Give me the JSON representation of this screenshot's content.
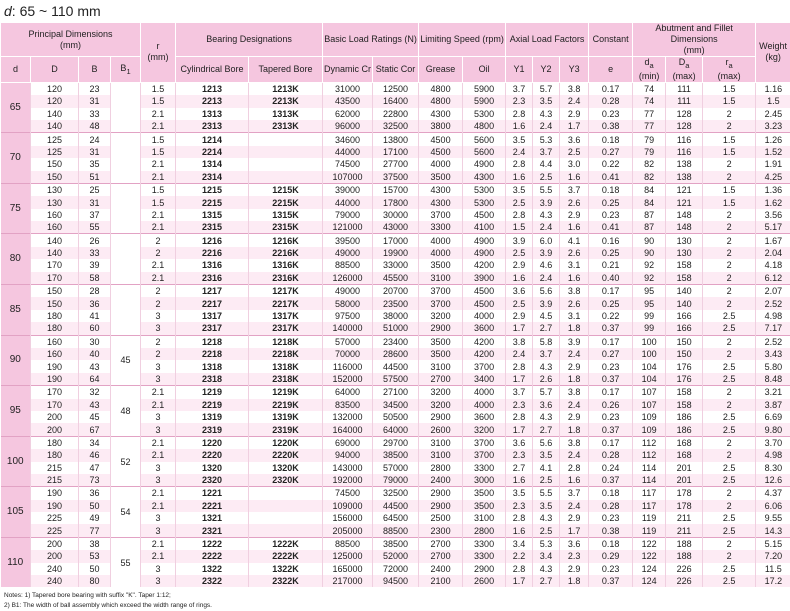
{
  "title": {
    "var": "d",
    "text": ": 65 ~ 110 mm"
  },
  "header_top": [
    {
      "text": "Principal Dimensions",
      "unit": "(mm)"
    },
    {
      "text": "r",
      "unit": "(mm)"
    },
    {
      "text": "Bearing Designations"
    },
    {
      "text": "Basic Load Ratings (N)"
    },
    {
      "text": "Limiting Speed (rpm)"
    },
    {
      "text": "Axial Load Factors"
    },
    {
      "text": "Constant"
    },
    {
      "text": "Abutment and Fillet Dimensions",
      "unit": "(mm)"
    },
    {
      "text": "Weight",
      "unit": "(kg)"
    }
  ],
  "header_sub": [
    {
      "text": "d"
    },
    {
      "text": "D"
    },
    {
      "text": "B"
    },
    {
      "text": "B",
      "sub": "1"
    },
    {
      "text": "Cylindrical Bore"
    },
    {
      "text": "Tapered Bore"
    },
    {
      "text": "Dynamic Cr"
    },
    {
      "text": "Static Cor"
    },
    {
      "text": "Grease"
    },
    {
      "text": "Oil"
    },
    {
      "text": "Y1"
    },
    {
      "text": "Y2"
    },
    {
      "text": "Y3"
    },
    {
      "text": "e"
    },
    {
      "text": "d",
      "sub": "a",
      "unit": "(min)"
    },
    {
      "text": "D",
      "sub": "a",
      "unit": "(max)"
    },
    {
      "text": "r",
      "sub": "a",
      "unit": "(max)"
    }
  ],
  "groups": [
    {
      "d": "65",
      "rows": [
        [
          "120",
          "23",
          "1.5",
          "1213",
          "1213K",
          "31000",
          "12500",
          "4800",
          "5900",
          "3.7",
          "5.7",
          "3.8",
          "0.17",
          "74",
          "111",
          "1.5",
          "1.16"
        ],
        [
          "120",
          "31",
          "1.5",
          "2213",
          "2213K",
          "43500",
          "16400",
          "4800",
          "5900",
          "2.3",
          "3.5",
          "2.4",
          "0.28",
          "74",
          "111",
          "1.5",
          "1.5"
        ],
        [
          "140",
          "33",
          "2.1",
          "1313",
          "1313K",
          "62000",
          "22800",
          "4300",
          "5300",
          "2.8",
          "4.3",
          "2.9",
          "0.23",
          "77",
          "128",
          "2",
          "2.45"
        ],
        [
          "140",
          "48",
          "2.1",
          "2313",
          "2313K",
          "96000",
          "32500",
          "3800",
          "4800",
          "1.6",
          "2.4",
          "1.7",
          "0.38",
          "77",
          "128",
          "2",
          "3.23"
        ]
      ]
    },
    {
      "d": "70",
      "rows": [
        [
          "125",
          "24",
          "1.5",
          "1214",
          null,
          "34600",
          "13800",
          "4500",
          "5600",
          "3.5",
          "5.3",
          "3.6",
          "0.18",
          "79",
          "116",
          "1.5",
          "1.26"
        ],
        [
          "125",
          "31",
          "1.5",
          "2214",
          null,
          "44000",
          "17100",
          "4500",
          "5600",
          "2.4",
          "3.7",
          "2.5",
          "0.27",
          "79",
          "116",
          "1.5",
          "1.52"
        ],
        [
          "150",
          "35",
          "2.1",
          "1314",
          null,
          "74500",
          "27700",
          "4000",
          "4900",
          "2.8",
          "4.4",
          "3.0",
          "0.22",
          "82",
          "138",
          "2",
          "1.91"
        ],
        [
          "150",
          "51",
          "2.1",
          "2314",
          null,
          "107000",
          "37500",
          "3500",
          "4300",
          "1.6",
          "2.5",
          "1.6",
          "0.41",
          "82",
          "138",
          "2",
          "4.25"
        ]
      ]
    },
    {
      "d": "75",
      "rows": [
        [
          "130",
          "25",
          "1.5",
          "1215",
          "1215K",
          "39000",
          "15700",
          "4300",
          "5300",
          "3.5",
          "5.5",
          "3.7",
          "0.18",
          "84",
          "121",
          "1.5",
          "1.36"
        ],
        [
          "130",
          "31",
          "1.5",
          "2215",
          "2215K",
          "44000",
          "17800",
          "4300",
          "5300",
          "2.5",
          "3.9",
          "2.6",
          "0.25",
          "84",
          "121",
          "1.5",
          "1.62"
        ],
        [
          "160",
          "37",
          "2.1",
          "1315",
          "1315K",
          "79000",
          "30000",
          "3700",
          "4500",
          "2.8",
          "4.3",
          "2.9",
          "0.23",
          "87",
          "148",
          "2",
          "3.56"
        ],
        [
          "160",
          "55",
          "2.1",
          "2315",
          "2315K",
          "121000",
          "43000",
          "3300",
          "4100",
          "1.5",
          "2.4",
          "1.6",
          "0.41",
          "87",
          "148",
          "2",
          "5.17"
        ]
      ]
    },
    {
      "d": "80",
      "rows": [
        [
          "140",
          "26",
          "2",
          "1216",
          "1216K",
          "39500",
          "17000",
          "4000",
          "4900",
          "3.9",
          "6.0",
          "4.1",
          "0.16",
          "90",
          "130",
          "2",
          "1.67"
        ],
        [
          "140",
          "33",
          "2",
          "2216",
          "2216K",
          "49000",
          "19900",
          "4000",
          "4900",
          "2.5",
          "3.9",
          "2.6",
          "0.25",
          "90",
          "130",
          "2",
          "2.04"
        ],
        [
          "170",
          "39",
          "2.1",
          "1316",
          "1316K",
          "88500",
          "33000",
          "3500",
          "4200",
          "2.9",
          "4.6",
          "3.1",
          "0.21",
          "92",
          "158",
          "2",
          "4.18"
        ],
        [
          "170",
          "58",
          "2.1",
          "2316",
          "2316K",
          "126000",
          "45500",
          "3100",
          "3900",
          "1.6",
          "2.4",
          "1.6",
          "0.40",
          "92",
          "158",
          "2",
          "6.12"
        ]
      ]
    },
    {
      "d": "85",
      "rows": [
        [
          "150",
          "28",
          "2",
          "1217",
          "1217K",
          "49000",
          "20700",
          "3700",
          "4500",
          "3.6",
          "5.6",
          "3.8",
          "0.17",
          "95",
          "140",
          "2",
          "2.07"
        ],
        [
          "150",
          "36",
          "2",
          "2217",
          "2217K",
          "58000",
          "23500",
          "3700",
          "4500",
          "2.5",
          "3.9",
          "2.6",
          "0.25",
          "95",
          "140",
          "2",
          "2.52"
        ],
        [
          "180",
          "41",
          "3",
          "1317",
          "1317K",
          "97500",
          "38000",
          "3200",
          "4000",
          "2.9",
          "4.5",
          "3.1",
          "0.22",
          "99",
          "166",
          "2.5",
          "4.98"
        ],
        [
          "180",
          "60",
          "3",
          "2317",
          "2317K",
          "140000",
          "51000",
          "2900",
          "3600",
          "1.7",
          "2.7",
          "1.8",
          "0.37",
          "99",
          "166",
          "2.5",
          "7.17"
        ]
      ]
    },
    {
      "d": "90",
      "b1": "45",
      "rows": [
        [
          "160",
          "30",
          "2",
          "1218",
          "1218K",
          "57000",
          "23400",
          "3500",
          "4200",
          "3.8",
          "5.8",
          "3.9",
          "0.17",
          "100",
          "150",
          "2",
          "2.52"
        ],
        [
          "160",
          "40",
          "2",
          "2218",
          "2218K",
          "70000",
          "28600",
          "3500",
          "4200",
          "2.4",
          "3.7",
          "2.4",
          "0.27",
          "100",
          "150",
          "2",
          "3.43"
        ],
        [
          "190",
          "43",
          "3",
          "1318",
          "1318K",
          "116000",
          "44500",
          "3100",
          "3700",
          "2.8",
          "4.3",
          "2.9",
          "0.23",
          "104",
          "176",
          "2.5",
          "5.80"
        ],
        [
          "190",
          "64",
          "3",
          "2318",
          "2318K",
          "152000",
          "57500",
          "2700",
          "3400",
          "1.7",
          "2.6",
          "1.8",
          "0.37",
          "104",
          "176",
          "2.5",
          "8.48"
        ]
      ]
    },
    {
      "d": "95",
      "b1": "48",
      "rows": [
        [
          "170",
          "32",
          "2.1",
          "1219",
          "1219K",
          "64000",
          "27100",
          "3200",
          "4000",
          "3.7",
          "5.7",
          "3.8",
          "0.17",
          "107",
          "158",
          "2",
          "3.21"
        ],
        [
          "170",
          "43",
          "2.1",
          "2219",
          "2219K",
          "83500",
          "34500",
          "3200",
          "4000",
          "2.3",
          "3.6",
          "2.4",
          "0.26",
          "107",
          "158",
          "2",
          "3.87"
        ],
        [
          "200",
          "45",
          "3",
          "1319",
          "1319K",
          "132000",
          "50500",
          "2900",
          "3600",
          "2.8",
          "4.3",
          "2.9",
          "0.23",
          "109",
          "186",
          "2.5",
          "6.69"
        ],
        [
          "200",
          "67",
          "3",
          "2319",
          "2319K",
          "164000",
          "64000",
          "2600",
          "3200",
          "1.7",
          "2.7",
          "1.8",
          "0.37",
          "109",
          "186",
          "2.5",
          "9.80"
        ]
      ]
    },
    {
      "d": "100",
      "b1": "52",
      "rows": [
        [
          "180",
          "34",
          "2.1",
          "1220",
          "1220K",
          "69000",
          "29700",
          "3100",
          "3700",
          "3.6",
          "5.6",
          "3.8",
          "0.17",
          "112",
          "168",
          "2",
          "3.70"
        ],
        [
          "180",
          "46",
          "2.1",
          "2220",
          "2220K",
          "94000",
          "38500",
          "3100",
          "3700",
          "2.3",
          "3.5",
          "2.4",
          "0.28",
          "112",
          "168",
          "2",
          "4.98"
        ],
        [
          "215",
          "47",
          "3",
          "1320",
          "1320K",
          "143000",
          "57000",
          "2800",
          "3300",
          "2.7",
          "4.1",
          "2.8",
          "0.24",
          "114",
          "201",
          "2.5",
          "8.30"
        ],
        [
          "215",
          "73",
          "3",
          "2320",
          "2320K",
          "192000",
          "79000",
          "2400",
          "3000",
          "1.6",
          "2.5",
          "1.6",
          "0.37",
          "114",
          "201",
          "2.5",
          "12.6"
        ]
      ]
    },
    {
      "d": "105",
      "b1": "54",
      "rows": [
        [
          "190",
          "36",
          "2.1",
          "1221",
          null,
          "74500",
          "32500",
          "2900",
          "3500",
          "3.5",
          "5.5",
          "3.7",
          "0.18",
          "117",
          "178",
          "2",
          "4.37"
        ],
        [
          "190",
          "50",
          "2.1",
          "2221",
          null,
          "109000",
          "44500",
          "2900",
          "3500",
          "2.3",
          "3.5",
          "2.4",
          "0.28",
          "117",
          "178",
          "2",
          "6.06"
        ],
        [
          "225",
          "49",
          "3",
          "1321",
          null,
          "156000",
          "64500",
          "2500",
          "3100",
          "2.8",
          "4.3",
          "2.9",
          "0.23",
          "119",
          "211",
          "2.5",
          "9.55"
        ],
        [
          "225",
          "77",
          "3",
          "2321",
          null,
          "205000",
          "88500",
          "2300",
          "2800",
          "1.6",
          "2.5",
          "1.7",
          "0.38",
          "119",
          "211",
          "2.5",
          "14.3"
        ]
      ]
    },
    {
      "d": "110",
      "b1": "55",
      "rows": [
        [
          "200",
          "38",
          "2.1",
          "1222",
          "1222K",
          "88500",
          "38500",
          "2700",
          "3300",
          "3.4",
          "5.3",
          "3.6",
          "0.18",
          "122",
          "188",
          "2",
          "5.15"
        ],
        [
          "200",
          "53",
          "2.1",
          "2222",
          "2222K",
          "125000",
          "52000",
          "2700",
          "3300",
          "2.2",
          "3.4",
          "2.3",
          "0.29",
          "122",
          "188",
          "2",
          "7.20"
        ],
        [
          "240",
          "50",
          "3",
          "1322",
          "1322K",
          "165000",
          "72000",
          "2400",
          "2900",
          "2.8",
          "4.3",
          "2.9",
          "0.23",
          "124",
          "226",
          "2.5",
          "11.5"
        ],
        [
          "240",
          "80",
          "3",
          "2322",
          "2322K",
          "217000",
          "94500",
          "2100",
          "2600",
          "1.7",
          "2.7",
          "1.8",
          "0.37",
          "124",
          "226",
          "2.5",
          "17.2"
        ]
      ]
    }
  ],
  "notes": [
    "Notes: 1) Tapered bore bearing with suffix \"K\". Taper 1:12;",
    "2) B1: The width of ball assembly which exceed the width range of rings."
  ]
}
